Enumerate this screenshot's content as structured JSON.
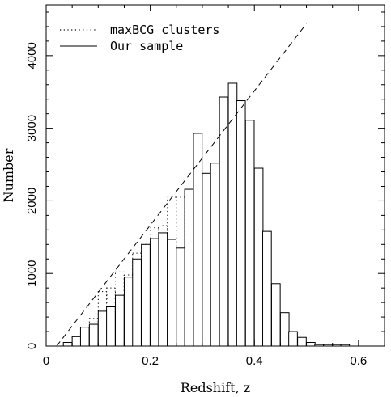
{
  "chart_data": {
    "type": "bar",
    "xlabel": "Redshift, z",
    "ylabel": "Number",
    "xlim": [
      0,
      0.65
    ],
    "ylim": [
      0,
      4700
    ],
    "bin_width": 0.0166,
    "x_ticks": [
      0,
      0.2,
      0.4,
      0.6
    ],
    "x_tick_labels": [
      "0",
      "0.2",
      "0.4",
      "0.6"
    ],
    "y_ticks": [
      0,
      1000,
      2000,
      3000,
      4000
    ],
    "y_tick_labels": [
      "0",
      "1000",
      "2000",
      "3000",
      "4000"
    ],
    "legend": {
      "placement": "top-left"
    },
    "series": [
      {
        "name": "maxBCG clusters",
        "style": "dotted",
        "bin_start": [
          0.033,
          0.05,
          0.066,
          0.083,
          0.1,
          0.116,
          0.133,
          0.15,
          0.166,
          0.183,
          0.2,
          0.216,
          0.233,
          0.25,
          0.266,
          0.283
        ],
        "values": [
          30,
          120,
          180,
          380,
          750,
          800,
          1020,
          980,
          1280,
          1400,
          1630,
          1660,
          2050,
          2050,
          1900,
          2070
        ]
      },
      {
        "name": "Our sample",
        "style": "solid",
        "bin_start": [
          0.033,
          0.05,
          0.066,
          0.083,
          0.1,
          0.116,
          0.133,
          0.15,
          0.166,
          0.183,
          0.2,
          0.216,
          0.233,
          0.25,
          0.266,
          0.283,
          0.3,
          0.316,
          0.333,
          0.35,
          0.366,
          0.383,
          0.4,
          0.416,
          0.433,
          0.45,
          0.466,
          0.483,
          0.5,
          0.516,
          0.533,
          0.55,
          0.566,
          0.583,
          0.6,
          0.616,
          0.633
        ],
        "values": [
          50,
          130,
          260,
          300,
          480,
          540,
          700,
          950,
          1200,
          1400,
          1480,
          1560,
          1470,
          1350,
          2160,
          2930,
          2380,
          2520,
          3430,
          3620,
          3380,
          3110,
          2450,
          1580,
          860,
          460,
          200,
          120,
          50,
          20,
          20,
          20,
          20,
          0,
          0,
          0,
          0
        ]
      },
      {
        "name": "",
        "style": "dashed",
        "type": "line",
        "x": [
          0.02,
          0.5
        ],
        "y": [
          0,
          4440
        ]
      }
    ]
  }
}
